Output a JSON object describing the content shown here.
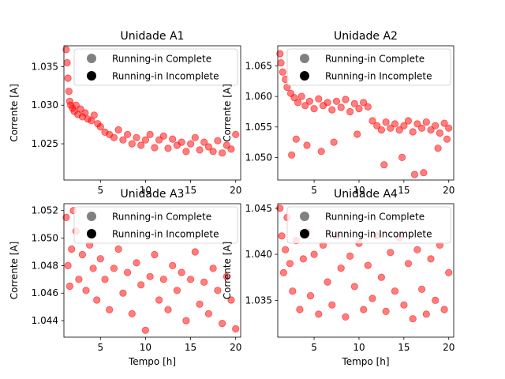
{
  "chart_data": [
    {
      "type": "scatter",
      "title": "Unidade A1",
      "xlabel": "",
      "ylabel": "Corrente [A]",
      "xlim": [
        0.95,
        20.55
      ],
      "ylim": [
        1.0203,
        1.0377
      ],
      "xticks": [
        5,
        10,
        15,
        20
      ],
      "yticks": [
        1.025,
        1.03,
        1.035
      ],
      "xtick_labels": [
        "5",
        "10",
        "15",
        "20"
      ],
      "ytick_labels": [
        "1.025",
        "1.030",
        "1.035"
      ],
      "legend": {
        "position": "top-right",
        "entries": [
          "Running-in Complete",
          "Running-in Incomplete"
        ]
      },
      "series": [
        {
          "x": [
            1.2,
            1.3,
            1.4,
            1.5,
            1.6,
            1.7,
            1.9,
            2.1,
            2.3,
            2.5,
            2.8,
            3.0,
            3.3,
            3.6,
            4.0,
            4.3,
            4.7,
            5.0,
            5.5,
            6.0,
            6.5,
            7.0,
            7.5,
            8.0,
            8.5,
            9.0,
            9.5,
            10.0,
            10.5,
            11.0,
            11.5,
            12.0,
            12.5,
            13.0,
            13.5,
            14.0,
            14.5,
            15.0,
            15.5,
            16.0,
            16.5,
            17.0,
            17.5,
            18.0,
            18.5,
            19.0,
            19.5,
            20.0
          ],
          "y": [
            1.0372,
            1.0355,
            1.0335,
            1.0318,
            1.0305,
            1.03,
            1.0296,
            1.0292,
            1.03,
            1.0288,
            1.0295,
            1.0285,
            1.029,
            1.0282,
            1.028,
            1.0287,
            1.0276,
            1.0272,
            1.0265,
            1.0262,
            1.0258,
            1.0268,
            1.0255,
            1.0262,
            1.025,
            1.0258,
            1.0248,
            1.0255,
            1.0262,
            1.0245,
            1.0255,
            1.026,
            1.0244,
            1.0256,
            1.0248,
            1.0252,
            1.024,
            1.025,
            1.0258,
            1.0242,
            1.0252,
            1.0246,
            1.024,
            1.0254,
            1.0238,
            1.0248,
            1.0243,
            1.0262
          ]
        }
      ]
    },
    {
      "type": "scatter",
      "title": "Unidade A2",
      "xlabel": "",
      "ylabel": "Corrente [A]",
      "xlim": [
        0.95,
        20.55
      ],
      "ylim": [
        1.0463,
        1.0683
      ],
      "xticks": [
        5,
        10,
        15,
        20
      ],
      "yticks": [
        1.05,
        1.055,
        1.06,
        1.065
      ],
      "xtick_labels": [
        "5",
        "10",
        "15",
        "20"
      ],
      "ytick_labels": [
        "1.050",
        "1.055",
        "1.060",
        "1.065"
      ],
      "legend": {
        "position": "top-right",
        "entries": [
          "Running-in Complete",
          "Running-in Incomplete"
        ]
      },
      "series": [
        {
          "x": [
            1.2,
            1.3,
            1.5,
            1.8,
            2.0,
            2.4,
            2.8,
            3.2,
            3.6,
            4.0,
            4.5,
            5.0,
            5.5,
            6.0,
            6.5,
            7.0,
            7.5,
            8.0,
            8.5,
            9.0,
            9.5,
            10.0,
            10.5,
            11.0,
            11.5,
            12.0,
            12.5,
            13.0,
            13.5,
            14.0,
            14.5,
            15.0,
            15.5,
            16.0,
            16.5,
            17.0,
            17.5,
            18.0,
            18.5,
            19.0,
            19.5,
            20.0,
            2.5,
            3.0,
            4.2,
            5.8,
            7.2,
            9.8,
            12.8,
            14.8,
            16.2,
            17.2,
            18.8,
            19.8
          ],
          "y": [
            1.067,
            1.0655,
            1.064,
            1.0628,
            1.0615,
            1.0605,
            1.0598,
            1.059,
            1.06,
            1.0585,
            1.0592,
            1.058,
            1.0596,
            1.0585,
            1.059,
            1.0578,
            1.0592,
            1.0582,
            1.0595,
            1.0575,
            1.0588,
            1.058,
            1.059,
            1.0583,
            1.056,
            1.0552,
            1.0545,
            1.0558,
            1.0548,
            1.0555,
            1.0545,
            1.0552,
            1.056,
            1.0542,
            1.0555,
            1.0548,
            1.0558,
            1.0545,
            1.0552,
            1.054,
            1.0556,
            1.0548,
            1.0504,
            1.053,
            1.052,
            1.051,
            1.0525,
            1.0538,
            1.0488,
            1.05,
            1.0472,
            1.0475,
            1.0515,
            1.053
          ]
        }
      ]
    },
    {
      "type": "scatter",
      "title": "Unidade A3",
      "xlabel": "Tempo [h]",
      "ylabel": "Corrente [A]",
      "xlim": [
        0.95,
        20.55
      ],
      "ylim": [
        1.0428,
        1.0525
      ],
      "xticks": [
        5,
        10,
        15,
        20
      ],
      "yticks": [
        1.044,
        1.046,
        1.048,
        1.05,
        1.052
      ],
      "xtick_labels": [
        "5",
        "10",
        "15",
        "20"
      ],
      "ytick_labels": [
        "1.044",
        "1.046",
        "1.048",
        "1.050",
        "1.052"
      ],
      "legend": {
        "position": "top-right",
        "entries": [
          "Running-in Complete",
          "Running-in Incomplete"
        ]
      },
      "series": [
        {
          "x": [
            1.2,
            1.4,
            1.6,
            1.8,
            2.0,
            2.3,
            2.6,
            3.0,
            3.4,
            3.8,
            4.2,
            4.6,
            5.0,
            5.5,
            6.0,
            6.5,
            7.0,
            7.5,
            8.0,
            8.5,
            9.0,
            9.5,
            10.0,
            10.5,
            11.0,
            11.5,
            12.0,
            12.5,
            13.0,
            13.5,
            14.0,
            14.5,
            15.0,
            15.5,
            16.0,
            16.5,
            17.0,
            17.5,
            18.0,
            18.5,
            19.0,
            19.5,
            20.0
          ],
          "y": [
            1.0515,
            1.048,
            1.0465,
            1.0492,
            1.052,
            1.0505,
            1.047,
            1.0488,
            1.0462,
            1.0495,
            1.0478,
            1.0455,
            1.0485,
            1.047,
            1.0448,
            1.0478,
            1.0492,
            1.046,
            1.0475,
            1.0445,
            1.0482,
            1.0466,
            1.0433,
            1.0472,
            1.0488,
            1.0455,
            1.047,
            1.0448,
            1.048,
            1.0462,
            1.0475,
            1.044,
            1.047,
            1.049,
            1.0452,
            1.0468,
            1.0445,
            1.0478,
            1.0462,
            1.0438,
            1.0472,
            1.0455,
            1.0434
          ]
        }
      ]
    },
    {
      "type": "scatter",
      "title": "Unidade A4",
      "xlabel": "Tempo [h]",
      "ylabel": "Corrente [A]",
      "xlim": [
        0.95,
        20.55
      ],
      "ylim": [
        1.031,
        1.0455
      ],
      "xticks": [
        5,
        10,
        15,
        20
      ],
      "yticks": [
        1.035,
        1.04,
        1.045
      ],
      "xtick_labels": [
        "5",
        "10",
        "15",
        "20"
      ],
      "ytick_labels": [
        "1.035",
        "1.040",
        "1.045"
      ],
      "legend": {
        "position": "top-right",
        "entries": [
          "Running-in Complete",
          "Running-in Incomplete"
        ]
      },
      "series": [
        {
          "x": [
            1.2,
            1.4,
            1.6,
            1.8,
            2.0,
            2.3,
            2.6,
            3.0,
            3.4,
            3.8,
            4.2,
            4.6,
            5.0,
            5.5,
            6.0,
            6.5,
            7.0,
            7.5,
            8.0,
            8.5,
            9.0,
            9.5,
            10.0,
            10.5,
            11.0,
            11.5,
            12.0,
            12.5,
            13.0,
            13.5,
            14.0,
            14.5,
            15.0,
            15.5,
            16.0,
            16.5,
            17.0,
            17.5,
            18.0,
            18.5,
            19.0,
            19.5,
            20.0
          ],
          "y": [
            1.045,
            1.042,
            1.038,
            1.0405,
            1.044,
            1.039,
            1.036,
            1.0415,
            1.034,
            1.0395,
            1.0425,
            1.0355,
            1.04,
            1.0335,
            1.041,
            1.037,
            1.0345,
            1.042,
            1.0385,
            1.0332,
            1.0398,
            1.0365,
            1.0412,
            1.034,
            1.0388,
            1.0352,
            1.042,
            1.0375,
            1.0338,
            1.0402,
            1.036,
            1.0418,
            1.0345,
            1.039,
            1.033,
            1.0405,
            1.0362,
            1.0335,
            1.0395,
            1.035,
            1.041,
            1.034,
            1.038
          ]
        }
      ]
    }
  ],
  "legend_style": {
    "complete_color": "#808080",
    "incomplete_color": "#000000",
    "point_color": "#ff0000"
  }
}
